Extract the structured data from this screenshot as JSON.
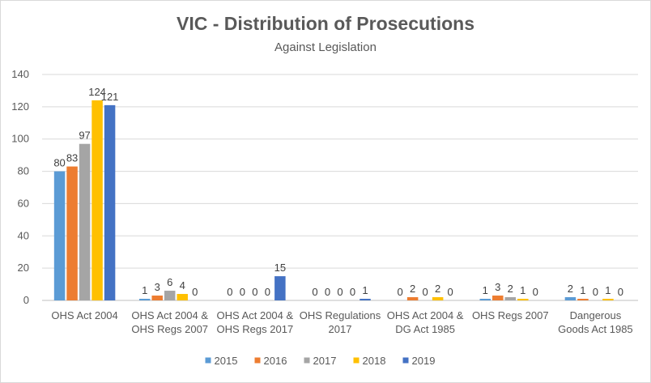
{
  "chart_data": {
    "type": "bar",
    "title": "VIC - Distribution of Prosecutions",
    "subtitle": "Against Legislation",
    "xlabel": "",
    "ylabel": "",
    "ylim": [
      0,
      140
    ],
    "yticks": [
      0,
      20,
      40,
      60,
      80,
      100,
      120,
      140
    ],
    "grid": true,
    "legend_position": "bottom",
    "categories": [
      [
        "OHS Act 2004"
      ],
      [
        "OHS Act 2004 &",
        "OHS Regs 2007"
      ],
      [
        "OHS Act 2004 &",
        "OHS Regs 2017"
      ],
      [
        "OHS Regulations",
        "2017"
      ],
      [
        "OHS Act 2004 &",
        "DG Act 1985"
      ],
      [
        "OHS Regs 2007"
      ],
      [
        "Dangerous",
        "Goods Act 1985"
      ]
    ],
    "series": [
      {
        "name": "2015",
        "color": "#5b9bd5",
        "values": [
          80,
          1,
          0,
          0,
          0,
          1,
          2
        ]
      },
      {
        "name": "2016",
        "color": "#ed7d31",
        "values": [
          83,
          3,
          0,
          0,
          2,
          3,
          1
        ]
      },
      {
        "name": "2017",
        "color": "#a5a5a5",
        "values": [
          97,
          6,
          0,
          0,
          0,
          2,
          0
        ]
      },
      {
        "name": "2018",
        "color": "#ffc000",
        "values": [
          124,
          4,
          0,
          0,
          2,
          1,
          1
        ]
      },
      {
        "name": "2019",
        "color": "#4472c4",
        "values": [
          121,
          0,
          15,
          1,
          0,
          0,
          0
        ]
      }
    ]
  }
}
